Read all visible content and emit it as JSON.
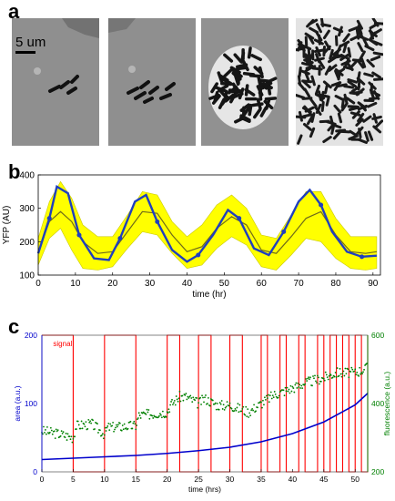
{
  "panels": {
    "a": {
      "label": "a",
      "scale_bar_text": "5 um"
    },
    "b": {
      "label": "b"
    },
    "c": {
      "label": "c"
    }
  },
  "chart_data": [
    {
      "type": "line",
      "panel": "b",
      "xlabel": "time (hr)",
      "ylabel": "YFP (AU)",
      "xlim": [
        0,
        92
      ],
      "ylim": [
        100,
        400
      ],
      "xticks": [
        0,
        10,
        20,
        30,
        40,
        50,
        60,
        70,
        80,
        90
      ],
      "yticks": [
        100,
        200,
        300,
        400
      ],
      "colors": {
        "band": "#ffff00",
        "trace": "#1f3fbf",
        "mean": "#6e6a1a"
      },
      "band": {
        "x": [
          0,
          3,
          6,
          9,
          12,
          16,
          20,
          24,
          28,
          32,
          36,
          40,
          44,
          48,
          52,
          56,
          60,
          64,
          68,
          72,
          76,
          80,
          84,
          88,
          91
        ],
        "upper": [
          210,
          320,
          380,
          330,
          250,
          215,
          215,
          280,
          350,
          340,
          260,
          215,
          250,
          310,
          340,
          300,
          220,
          210,
          280,
          350,
          350,
          270,
          215,
          215,
          215
        ],
        "lower": [
          130,
          210,
          240,
          175,
          120,
          115,
          125,
          180,
          230,
          220,
          165,
          120,
          130,
          180,
          215,
          190,
          125,
          115,
          160,
          210,
          200,
          150,
          120,
          115,
          120
        ]
      },
      "series": [
        {
          "x": [
            0,
            3,
            5,
            8,
            11,
            15,
            19,
            22,
            26,
            29,
            32,
            36,
            40,
            43,
            47,
            51,
            54,
            58,
            62,
            66,
            70,
            73,
            76,
            79,
            83,
            87,
            91
          ],
          "y": [
            165,
            270,
            365,
            345,
            220,
            150,
            145,
            210,
            320,
            340,
            260,
            175,
            140,
            160,
            220,
            295,
            270,
            180,
            160,
            230,
            320,
            355,
            310,
            230,
            170,
            155,
            158
          ]
        },
        {
          "x": [
            0,
            3,
            6,
            9,
            12,
            16,
            20,
            24,
            28,
            32,
            36,
            40,
            44,
            48,
            52,
            56,
            60,
            64,
            68,
            72,
            76,
            80,
            84,
            88,
            91
          ],
          "y": [
            170,
            260,
            290,
            260,
            200,
            165,
            170,
            230,
            290,
            285,
            220,
            170,
            185,
            240,
            275,
            250,
            175,
            165,
            215,
            270,
            290,
            220,
            170,
            165,
            170
          ]
        }
      ]
    },
    {
      "type": "line",
      "panel": "c",
      "legend": [
        "signal"
      ],
      "xlabel": "time (hrs)",
      "ylabel_left": "area (a.u.)",
      "ylabel_right": "fluorescence (a.u.)",
      "xlim": [
        0,
        52
      ],
      "ylim_left": [
        0,
        200
      ],
      "ylim_right": [
        200,
        600
      ],
      "xticks": [
        0,
        5,
        10,
        15,
        20,
        25,
        30,
        35,
        40,
        45,
        50
      ],
      "yticks_left": [
        0,
        100,
        200
      ],
      "yticks_right": [
        200,
        400,
        600
      ],
      "colors": {
        "signal": "#ff0000",
        "area": "#0000cc",
        "fluorescence": "#008000",
        "left_axis": "#0000cc",
        "right_axis": "#008000"
      },
      "signal_toggles": [
        5,
        10,
        15,
        20,
        22,
        25,
        27,
        30,
        32,
        35,
        36,
        38,
        39,
        41,
        42,
        44,
        45,
        46,
        47,
        48,
        49,
        50,
        51,
        52
      ],
      "area": {
        "x": [
          0,
          5,
          10,
          15,
          20,
          25,
          30,
          35,
          40,
          45,
          50,
          52
        ],
        "y": [
          18,
          20,
          22,
          24,
          27,
          31,
          36,
          44,
          56,
          73,
          98,
          115
        ]
      },
      "fluorescence": {
        "x": [
          0,
          3,
          5,
          5.5,
          8,
          10,
          10.5,
          15,
          15.5,
          20,
          20.5,
          22,
          23,
          25,
          26,
          28,
          30,
          33,
          35,
          37,
          40,
          42,
          45,
          47,
          50,
          52
        ],
        "y": [
          320,
          310,
          300,
          335,
          340,
          310,
          330,
          335,
          365,
          375,
          395,
          420,
          420,
          400,
          415,
          395,
          395,
          375,
          400,
          425,
          445,
          460,
          475,
          490,
          490,
          505
        ]
      }
    }
  ]
}
